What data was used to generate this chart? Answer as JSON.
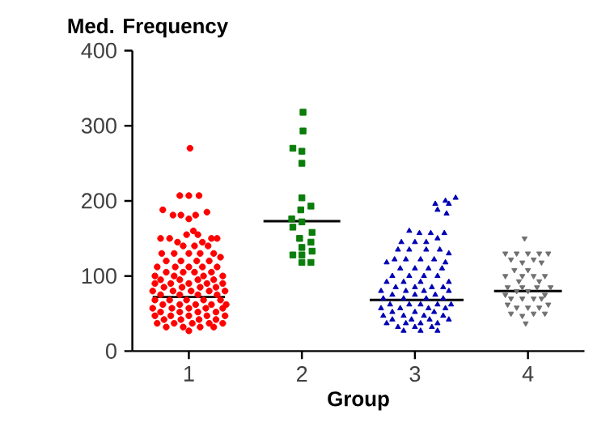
{
  "chart_data": {
    "type": "scatter",
    "xlabel": "Group",
    "ylabel": "Med. Frequency",
    "xlim": [
      0.5,
      4.5
    ],
    "xticks": [
      1,
      2,
      3,
      4
    ],
    "ylim": [
      0,
      400
    ],
    "yticks": [
      0,
      100,
      200,
      300,
      400
    ],
    "series": [
      {
        "color": "#ff0000",
        "marker": "circle",
        "x": [
          1.01,
          0.92,
          1,
          1.09,
          0.77,
          0.86,
          0.93,
          1.06,
          1,
          1.16,
          1.04,
          0.98,
          1.08,
          0.75,
          0.83,
          1.2,
          1.25,
          0.9,
          1.12,
          0.95,
          1.05,
          1.17,
          0.76,
          0.87,
          1,
          1.1,
          1.22,
          1.28,
          0.8,
          0.93,
          1.07,
          1.18,
          0.72,
          0.88,
          1,
          1.12,
          1.25,
          0.8,
          0.95,
          1.05,
          1.2,
          0.7,
          0.87,
          1.13,
          1.3,
          0.75,
          0.92,
          1.08,
          1.22,
          0.7,
          0.84,
          1,
          1.16,
          1.3,
          0.78,
          0.94,
          1.1,
          1.24,
          0.68,
          0.86,
          1.02,
          1.18,
          1.32,
          0.75,
          0.92,
          1.08,
          1.25,
          0.7,
          0.83,
          0.98,
          1.13,
          1.28,
          0.77,
          0.92,
          1.06,
          1.2,
          1.33,
          0.68,
          0.85,
          1,
          1.15,
          1.3,
          0.75,
          0.92,
          1.08,
          1.24,
          0.7,
          0.84,
          1,
          1.16,
          1.32,
          0.78,
          0.93,
          1.09,
          1.24,
          0.72,
          0.87,
          1.03,
          1.18,
          1.3,
          0.8,
          0.95,
          1.1,
          1.22,
          1
        ],
        "values": [
          270,
          207,
          207,
          207,
          188,
          181,
          181,
          181,
          176,
          185,
          160,
          155,
          155,
          150,
          150,
          150,
          150,
          145,
          145,
          140,
          140,
          140,
          130,
          130,
          130,
          130,
          130,
          125,
          120,
          120,
          120,
          120,
          112,
          112,
          112,
          112,
          112,
          105,
          105,
          105,
          105,
          100,
          100,
          100,
          100,
          95,
          95,
          95,
          95,
          90,
          90,
          90,
          90,
          90,
          85,
          85,
          85,
          85,
          80,
          80,
          80,
          80,
          80,
          75,
          75,
          75,
          75,
          68,
          68,
          68,
          68,
          68,
          62,
          62,
          62,
          62,
          62,
          57,
          57,
          57,
          57,
          57,
          52,
          52,
          52,
          52,
          47,
          47,
          47,
          47,
          47,
          42,
          42,
          42,
          42,
          37,
          37,
          37,
          37,
          37,
          32,
          32,
          32,
          32,
          27
        ]
      },
      {
        "color": "#0a7d0a",
        "marker": "square",
        "x": [
          2.01,
          2.01,
          1.92,
          2,
          2,
          2,
          2.08,
          1.99,
          1.91,
          2,
          1.92,
          2.09,
          1.98,
          2.08,
          2,
          2.09,
          2,
          1.92,
          2,
          2.08
        ],
        "values": [
          318,
          293,
          270,
          266,
          250,
          204,
          193,
          188,
          176,
          172,
          165,
          158,
          150,
          145,
          138,
          133,
          128,
          128,
          118,
          118
        ]
      },
      {
        "color": "#0000b4",
        "marker": "triangle",
        "x": [
          3.36,
          3.27,
          3.18,
          3.3,
          3.2,
          3.28,
          2.95,
          3.04,
          3.14,
          3.26,
          3.2,
          2.88,
          3,
          3.1,
          2.85,
          2.95,
          3.1,
          3.22,
          3.3,
          2.82,
          2.92,
          3.05,
          3.17,
          2.75,
          3.27,
          2.87,
          3,
          3.12,
          3.24,
          2.8,
          2.95,
          3.08,
          3.2,
          2.75,
          2.9,
          3.05,
          3.3,
          2.83,
          3,
          3.15,
          3.25,
          2.7,
          2.92,
          3.08,
          3.3,
          2.8,
          3,
          3.18,
          2.72,
          2.9,
          3.1,
          3.25,
          2.78,
          2.95,
          3.05,
          3.2,
          3.32,
          2.7,
          2.87,
          3.12,
          3.27,
          2.8,
          3,
          3.17,
          2.72,
          2.9,
          3.08,
          3.25,
          2.8,
          2.97,
          3.13,
          3.3,
          2.75,
          2.92,
          3.05,
          3.2,
          2.85,
          3,
          3.15,
          2.9,
          3.05,
          3.2
        ],
        "values": [
          204,
          200,
          196,
          196,
          188,
          183,
          160,
          157,
          157,
          157,
          150,
          145,
          145,
          145,
          135,
          135,
          135,
          135,
          130,
          122,
          122,
          122,
          122,
          118,
          118,
          110,
          110,
          110,
          110,
          100,
          100,
          100,
          100,
          92,
          92,
          92,
          92,
          85,
          85,
          85,
          85,
          80,
          80,
          80,
          80,
          75,
          75,
          75,
          70,
          70,
          70,
          70,
          62,
          62,
          62,
          62,
          62,
          57,
          57,
          57,
          57,
          52,
          52,
          52,
          47,
          47,
          47,
          47,
          42,
          42,
          42,
          42,
          37,
          37,
          37,
          37,
          32,
          32,
          32,
          27,
          27,
          27
        ]
      },
      {
        "color": "#707070",
        "marker": "triangle-down",
        "x": [
          3.97,
          3.8,
          3.9,
          4,
          4.1,
          4.18,
          3.85,
          4.05,
          3.95,
          4.12,
          3.88,
          4,
          3.8,
          3.95,
          4.05,
          4.15,
          3.92,
          4.1,
          3.82,
          3.95,
          4.08,
          4.2,
          3.9,
          4,
          3.8,
          4.15,
          3.85,
          3.95,
          4.05,
          4.12,
          3.82,
          4.18,
          3.9,
          4,
          4.1,
          3.85,
          4.05,
          4.15,
          3.95,
          3.98
        ],
        "values": [
          150,
          130,
          130,
          130,
          130,
          130,
          122,
          122,
          118,
          118,
          108,
          108,
          100,
          100,
          100,
          100,
          93,
          93,
          85,
          85,
          85,
          85,
          80,
          80,
          75,
          75,
          70,
          70,
          70,
          70,
          62,
          62,
          58,
          58,
          58,
          50,
          50,
          50,
          47,
          37
        ]
      },
      {
        "type": "line",
        "color": "#000000",
        "marker": "none",
        "x": [
          0.68,
          1.32
        ],
        "values": [
          72,
          72
        ]
      },
      {
        "type": "line",
        "color": "#000000",
        "marker": "none",
        "x": [
          1.66,
          2.34
        ],
        "values": [
          173,
          173
        ]
      },
      {
        "type": "line",
        "color": "#000000",
        "marker": "none",
        "x": [
          2.6,
          3.43
        ],
        "values": [
          68,
          68
        ]
      },
      {
        "type": "line",
        "color": "#000000",
        "marker": "none",
        "x": [
          3.7,
          4.3
        ],
        "values": [
          80,
          80
        ]
      }
    ]
  }
}
